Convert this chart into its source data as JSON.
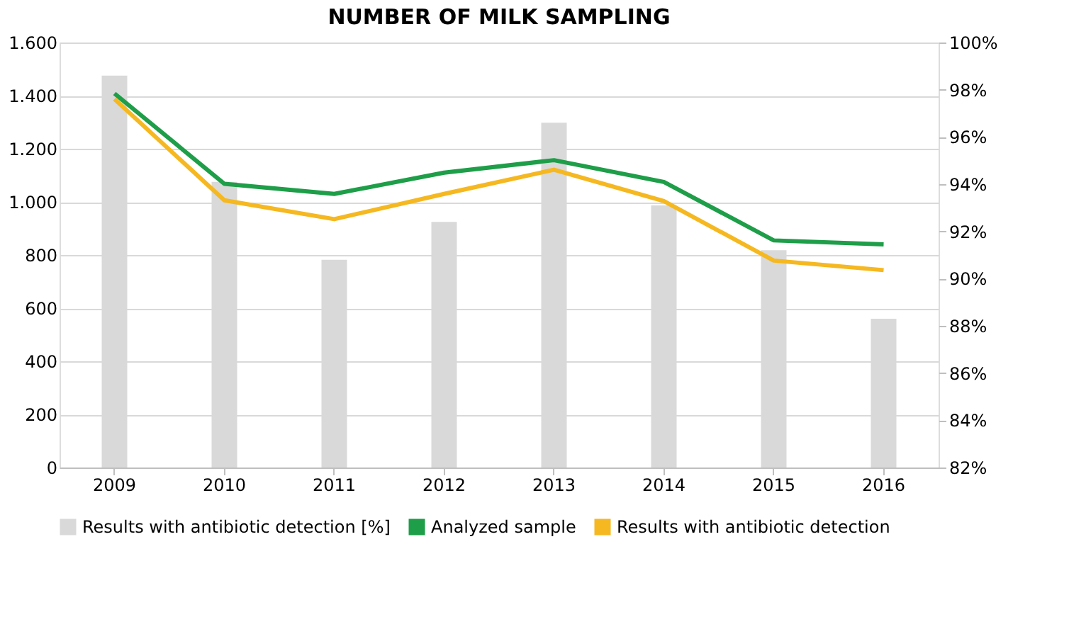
{
  "chart_data": {
    "type": "line",
    "title": "NUMBER OF MILK SAMPLING",
    "categories": [
      "2009",
      "2010",
      "2011",
      "2012",
      "2013",
      "2014",
      "2015",
      "2016"
    ],
    "series": [
      {
        "name": "Results with antibiotic detection [%]",
        "type": "bar",
        "axis": "y2",
        "color": "#d9d9d9",
        "values": [
          98.6,
          94.1,
          90.8,
          92.4,
          96.6,
          93.1,
          91.2,
          88.3
        ]
      },
      {
        "name": "Analyzed sample",
        "color": "#1e9e48",
        "values": [
          1408,
          1068,
          1030,
          1110,
          1157,
          1075,
          855,
          840
        ]
      },
      {
        "name": "Results with antibiotic detection",
        "color": "#f5b820",
        "values": [
          1387,
          1006,
          935,
          1030,
          1121,
          1003,
          779,
          743
        ]
      }
    ],
    "ylim": [
      0,
      1600
    ],
    "yticks": [
      0,
      200,
      400,
      600,
      800,
      {
        "value": 1000,
        "label": "1.000"
      },
      {
        "value": 1200,
        "label": "1.200"
      },
      {
        "value": 1400,
        "label": "1.400"
      },
      {
        "value": 1600,
        "label": "1.600"
      }
    ],
    "y2lim": [
      82,
      100
    ],
    "y2ticks": [
      {
        "value": 82,
        "label": "82%"
      },
      {
        "value": 84,
        "label": "84%"
      },
      {
        "value": 86,
        "label": "86%"
      },
      {
        "value": 88,
        "label": "88%"
      },
      {
        "value": 90,
        "label": "90%"
      },
      {
        "value": 92,
        "label": "92%"
      },
      {
        "value": 94,
        "label": "94%"
      },
      {
        "value": 96,
        "label": "96%"
      },
      {
        "value": 98,
        "label": "98%"
      },
      {
        "value": 100,
        "label": "100%"
      }
    ],
    "grid": "y",
    "legend": "bottom",
    "line_style": "solid",
    "marker": "none"
  }
}
